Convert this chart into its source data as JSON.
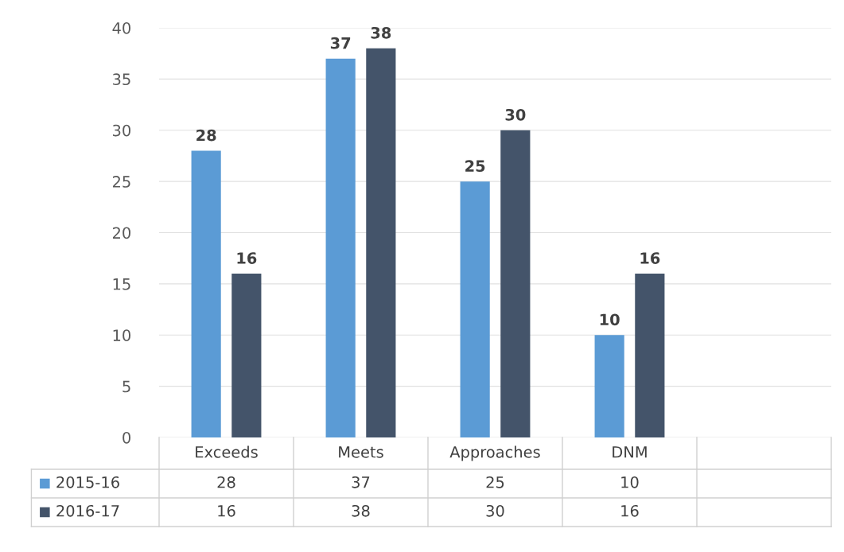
{
  "chart_data": {
    "type": "bar",
    "categories": [
      "Exceeds",
      "Meets",
      "Approaches",
      "DNM",
      null
    ],
    "series": [
      {
        "name": "2015-16",
        "color": "#5b9bd5",
        "values": [
          28,
          37,
          25,
          10,
          null
        ],
        "value_labels": [
          "28",
          "37",
          "25",
          "10",
          null
        ]
      },
      {
        "name": "2016-17",
        "color": "#44546a",
        "values": [
          16,
          38,
          30,
          16,
          null
        ],
        "value_labels": [
          "16",
          "38",
          "30",
          "16",
          null
        ]
      }
    ],
    "ylim": [
      0,
      40
    ],
    "yticks": [
      0,
      5,
      10,
      15,
      20,
      25,
      30,
      35,
      40
    ],
    "grid": "y",
    "legend": "bottom left",
    "annotations": [
      "28",
      "37",
      "25",
      "10",
      "16",
      "38",
      "30",
      "16"
    ]
  }
}
